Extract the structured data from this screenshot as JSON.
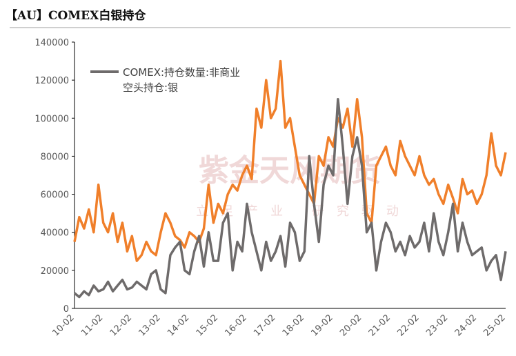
{
  "chart_data": {
    "type": "line",
    "title": "【AU】COMEX白银持仓",
    "watermark": "紫金天风期货",
    "watermark_slogan": "立足产业 研究驱动",
    "categories": [
      "10-02",
      null,
      null,
      null,
      null,
      null,
      "11-02",
      null,
      null,
      null,
      null,
      null,
      "12-02",
      null,
      null,
      null,
      null,
      null,
      "13-02",
      null,
      null,
      null,
      null,
      null,
      "14-02",
      null,
      null,
      null,
      null,
      null,
      "15-02",
      null,
      null,
      null,
      null,
      null,
      "16-02",
      null,
      null,
      null,
      null,
      null,
      "17-02",
      null,
      null,
      null,
      null,
      null,
      "18-02",
      null,
      null,
      null,
      null,
      null,
      "19-02",
      null,
      null,
      null,
      null,
      null,
      "20-02",
      null,
      null,
      null,
      null,
      null,
      "21-02",
      null,
      null,
      null,
      null,
      null,
      "22-02",
      null,
      null,
      null,
      null,
      null,
      "23-02",
      null,
      null,
      null,
      null,
      null,
      "24-02",
      null,
      null,
      null,
      null,
      null,
      "25-02"
    ],
    "series": [
      {
        "color": "#f07f2a",
        "values": [
          35000,
          48000,
          42000,
          52000,
          40000,
          65000,
          45000,
          40000,
          50000,
          35000,
          45000,
          30000,
          38000,
          25000,
          28000,
          35000,
          30000,
          28000,
          40000,
          50000,
          45000,
          38000,
          36000,
          32000,
          40000,
          38000,
          35000,
          42000,
          65000,
          45000,
          55000,
          50000,
          60000,
          65000,
          62000,
          70000,
          75000,
          68000,
          105000,
          95000,
          120000,
          100000,
          105000,
          130000,
          95000,
          100000,
          85000,
          70000,
          65000,
          60000,
          55000,
          80000,
          75000,
          90000,
          85000,
          100000,
          95000,
          105000,
          85000,
          110000,
          90000,
          50000,
          45000,
          75000,
          80000,
          85000,
          75000,
          70000,
          88000,
          80000,
          75000,
          70000,
          80000,
          70000,
          65000,
          68000,
          60000,
          55000,
          65000,
          58000,
          50000,
          68000,
          60000,
          62000,
          55000,
          60000,
          70000,
          92000,
          75000,
          70000,
          82000
        ]
      },
      {
        "name": "COMEX:持仓数量:非商业空头持仓:银",
        "color": "#6e6b6b",
        "values": [
          8000,
          6000,
          9000,
          7000,
          12000,
          9000,
          10000,
          14000,
          9000,
          12000,
          15000,
          10000,
          11000,
          14000,
          12000,
          10000,
          18000,
          20000,
          10000,
          8000,
          28000,
          32000,
          35000,
          20000,
          18000,
          30000,
          38000,
          22000,
          40000,
          25000,
          25000,
          45000,
          50000,
          20000,
          35000,
          30000,
          55000,
          40000,
          30000,
          20000,
          35000,
          25000,
          30000,
          38000,
          22000,
          45000,
          40000,
          25000,
          30000,
          80000,
          55000,
          35000,
          65000,
          75000,
          70000,
          110000,
          85000,
          55000,
          80000,
          90000,
          75000,
          40000,
          45000,
          20000,
          35000,
          45000,
          40000,
          30000,
          35000,
          28000,
          38000,
          32000,
          35000,
          45000,
          30000,
          50000,
          35000,
          28000,
          40000,
          55000,
          30000,
          45000,
          35000,
          28000,
          30000,
          32000,
          20000,
          25000,
          28000,
          15000,
          30000
        ]
      }
    ],
    "ylim": [
      0,
      140000
    ],
    "yticks": [
      0,
      20000,
      40000,
      60000,
      80000,
      100000,
      120000,
      140000
    ],
    "grid": false
  }
}
